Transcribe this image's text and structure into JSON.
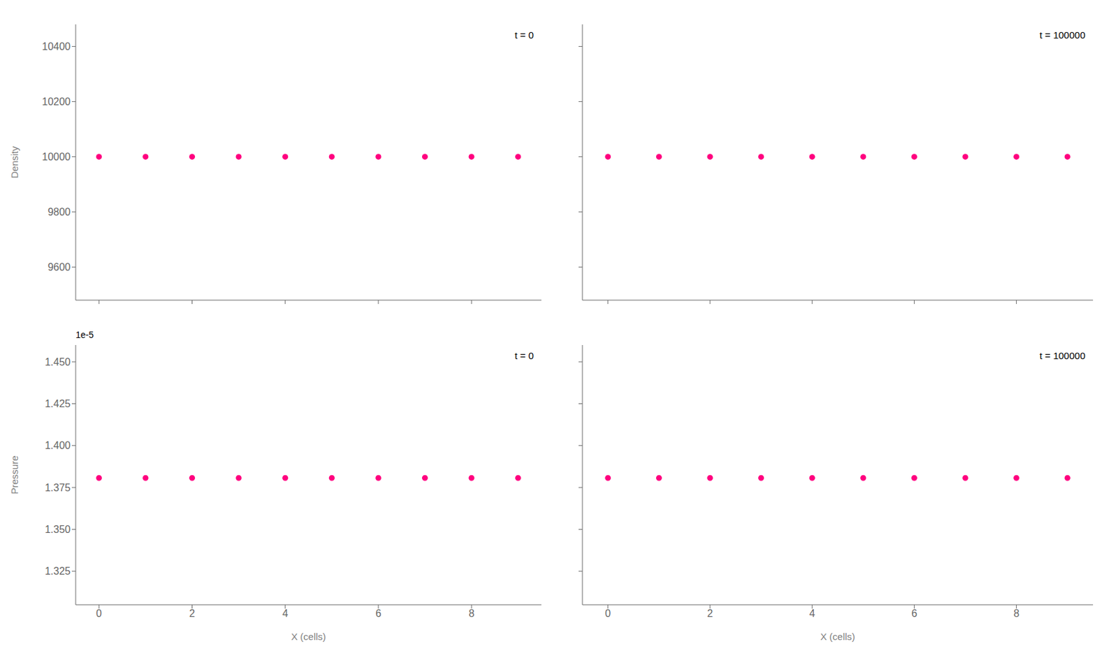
{
  "chart_data": [
    {
      "type": "scatter",
      "x": [
        0,
        1,
        2,
        3,
        4,
        5,
        6,
        7,
        8,
        9
      ],
      "values": [
        10000.0,
        10000.0,
        10000.0,
        10000.0,
        10000.0,
        10000.0,
        10000.0,
        10000.0,
        10000.0,
        10000.0
      ],
      "color": "#ff007f",
      "xlim": [
        -0.5,
        9.5
      ],
      "xticks": [
        0,
        2,
        4,
        6,
        8
      ],
      "ylim": [
        9480,
        10480
      ],
      "yticks": [
        9600,
        9800,
        10000,
        10200,
        10400
      ],
      "ylabel": "Density",
      "annotations": [
        "t = 0"
      ],
      "tick_labels": "y"
    },
    {
      "type": "scatter",
      "x": [
        0,
        1,
        2,
        3,
        4,
        5,
        6,
        7,
        8,
        9
      ],
      "values": [
        10000.0,
        10000.0,
        10000.0,
        10000.0,
        10000.0,
        10000.0,
        10000.0,
        10000.0,
        10000.0,
        10000.0
      ],
      "color": "#ff007f",
      "xlim": [
        -0.5,
        9.5
      ],
      "xticks": [
        0,
        2,
        4,
        6,
        8
      ],
      "ylim": [
        9480,
        10480
      ],
      "yticks": [
        9600,
        9800,
        10000,
        10200,
        10400
      ],
      "annotations": [
        "t = 100000"
      ],
      "tick_labels": false
    },
    {
      "type": "scatter",
      "x": [
        0,
        1,
        2,
        3,
        4,
        5,
        6,
        7,
        8,
        9
      ],
      "values": [
        1.380658e-05,
        1.380658e-05,
        1.380658e-05,
        1.380658e-05,
        1.380658e-05,
        1.380658e-05,
        1.380658e-05,
        1.380658e-05,
        1.380658e-05,
        1.380658e-05
      ],
      "color": "#ff007f",
      "xlim": [
        -0.5,
        9.5
      ],
      "xticks": [
        0,
        2,
        4,
        6,
        8
      ],
      "ylim": [
        1.305e-05,
        1.46e-05
      ],
      "yticks": [
        {
          "value": 1.325e-05,
          "label": "1.325"
        },
        {
          "value": 1.35e-05,
          "label": "1.350"
        },
        {
          "value": 1.375e-05,
          "label": "1.375"
        },
        {
          "value": 1.4e-05,
          "label": "1.400"
        },
        {
          "value": 1.425e-05,
          "label": "1.425"
        },
        {
          "value": 1.45e-05,
          "label": "1.450"
        }
      ],
      "xlabel": "X (cells)",
      "ylabel": "Pressure",
      "annotations": [
        "t = 0",
        "1e-5"
      ]
    },
    {
      "type": "scatter",
      "x": [
        0,
        1,
        2,
        3,
        4,
        5,
        6,
        7,
        8,
        9
      ],
      "values": [
        1.380658e-05,
        1.380658e-05,
        1.380658e-05,
        1.380658e-05,
        1.380658e-05,
        1.380658e-05,
        1.380658e-05,
        1.380658e-05,
        1.380658e-05,
        1.380658e-05
      ],
      "color": "#ff007f",
      "xlim": [
        -0.5,
        9.5
      ],
      "xticks": [
        0,
        2,
        4,
        6,
        8
      ],
      "ylim": [
        1.305e-05,
        1.46e-05
      ],
      "yticks": [
        {
          "value": 1.325e-05,
          "label": "1.325"
        },
        {
          "value": 1.35e-05,
          "label": "1.350"
        },
        {
          "value": 1.375e-05,
          "label": "1.375"
        },
        {
          "value": 1.4e-05,
          "label": "1.400"
        },
        {
          "value": 1.425e-05,
          "label": "1.425"
        },
        {
          "value": 1.45e-05,
          "label": "1.450"
        }
      ],
      "xlabel": "X (cells)",
      "annotations": [
        "t = 100000"
      ],
      "tick_labels": "x"
    }
  ]
}
